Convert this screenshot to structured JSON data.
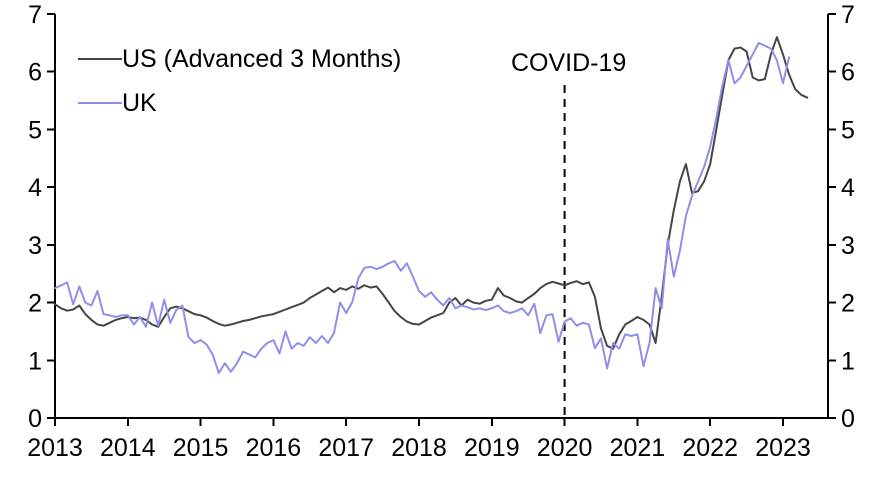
{
  "figure": {
    "background": "#ffffff"
  },
  "legend": {
    "items": [
      {
        "label": "US (Advanced 3 Months)",
        "color": "#454545"
      },
      {
        "label": "UK",
        "color": "#8f8fea"
      }
    ]
  },
  "annotation": {
    "label": "COVID-19",
    "year": 2020
  },
  "chart_data": {
    "type": "line",
    "title": "",
    "xlabel": "",
    "ylabel": "",
    "x_start": "2013-01",
    "x_frequency": "monthly",
    "x_tick_labels": [
      "2013",
      "2014",
      "2015",
      "2016",
      "2017",
      "2018",
      "2019",
      "2020",
      "2021",
      "2022",
      "2023"
    ],
    "x_tick_years": [
      2013,
      2014,
      2015,
      2016,
      2017,
      2018,
      2019,
      2020,
      2021,
      2022,
      2023
    ],
    "ylim": [
      0,
      7
    ],
    "y_ticks": [
      0,
      1,
      2,
      3,
      4,
      5,
      6,
      7
    ],
    "y_axis_left": true,
    "y_axis_right": true,
    "grid": false,
    "legend_position": "top-left",
    "annotation_line": {
      "label": "COVID-19",
      "year": 2020,
      "style": "dashed",
      "color": "#000000"
    },
    "series": [
      {
        "name": "US (Advanced 3 Months)",
        "color": "#454545",
        "start": "2013-01",
        "values": [
          1.97,
          1.9,
          1.86,
          1.88,
          1.95,
          1.8,
          1.7,
          1.62,
          1.6,
          1.65,
          1.7,
          1.73,
          1.75,
          1.73,
          1.74,
          1.7,
          1.62,
          1.58,
          1.75,
          1.9,
          1.93,
          1.9,
          1.85,
          1.8,
          1.78,
          1.74,
          1.68,
          1.63,
          1.6,
          1.62,
          1.65,
          1.68,
          1.7,
          1.73,
          1.76,
          1.78,
          1.8,
          1.84,
          1.88,
          1.92,
          1.96,
          2.0,
          2.08,
          2.14,
          2.2,
          2.26,
          2.18,
          2.25,
          2.22,
          2.28,
          2.24,
          2.3,
          2.26,
          2.28,
          2.15,
          2.0,
          1.85,
          1.75,
          1.67,
          1.63,
          1.62,
          1.68,
          1.74,
          1.78,
          1.82,
          2.0,
          2.08,
          1.95,
          2.05,
          2.0,
          1.98,
          2.03,
          2.05,
          2.25,
          2.12,
          2.08,
          2.02,
          2.0,
          2.08,
          2.15,
          2.25,
          2.32,
          2.36,
          2.33,
          2.3,
          2.34,
          2.37,
          2.32,
          2.35,
          2.1,
          1.55,
          1.25,
          1.2,
          1.45,
          1.62,
          1.68,
          1.75,
          1.7,
          1.62,
          1.3,
          2.1,
          3.0,
          3.6,
          4.1,
          4.4,
          3.9,
          3.93,
          4.1,
          4.4,
          5.0,
          5.6,
          6.2,
          6.4,
          6.42,
          6.35,
          5.9,
          5.85,
          5.87,
          6.3,
          6.6,
          6.3,
          5.95,
          5.7,
          5.6,
          5.55
        ]
      },
      {
        "name": "UK",
        "color": "#8f8fea",
        "start": "2013-01",
        "values": [
          2.25,
          2.3,
          2.35,
          1.97,
          2.28,
          2.0,
          1.95,
          2.2,
          1.8,
          1.78,
          1.75,
          1.78,
          1.78,
          1.62,
          1.75,
          1.58,
          2.0,
          1.6,
          2.05,
          1.65,
          1.87,
          1.95,
          1.4,
          1.3,
          1.35,
          1.27,
          1.1,
          0.78,
          0.95,
          0.8,
          0.95,
          1.15,
          1.1,
          1.05,
          1.2,
          1.3,
          1.35,
          1.12,
          1.5,
          1.2,
          1.3,
          1.25,
          1.4,
          1.3,
          1.42,
          1.3,
          1.48,
          2.0,
          1.82,
          2.01,
          2.42,
          2.6,
          2.62,
          2.58,
          2.62,
          2.68,
          2.72,
          2.55,
          2.68,
          2.45,
          2.2,
          2.1,
          2.18,
          2.05,
          1.95,
          2.08,
          1.9,
          1.95,
          1.92,
          1.88,
          1.9,
          1.87,
          1.9,
          1.95,
          1.85,
          1.82,
          1.85,
          1.9,
          1.78,
          1.98,
          1.47,
          1.78,
          1.8,
          1.32,
          1.67,
          1.73,
          1.6,
          1.65,
          1.62,
          1.21,
          1.38,
          0.86,
          1.3,
          1.2,
          1.45,
          1.42,
          1.45,
          0.9,
          1.3,
          2.25,
          1.9,
          3.1,
          2.45,
          2.9,
          3.5,
          3.85,
          4.1,
          4.35,
          4.7,
          5.2,
          5.75,
          6.2,
          5.8,
          5.9,
          6.1,
          6.3,
          6.5,
          6.45,
          6.4,
          6.2,
          5.8,
          6.25
        ]
      }
    ]
  }
}
